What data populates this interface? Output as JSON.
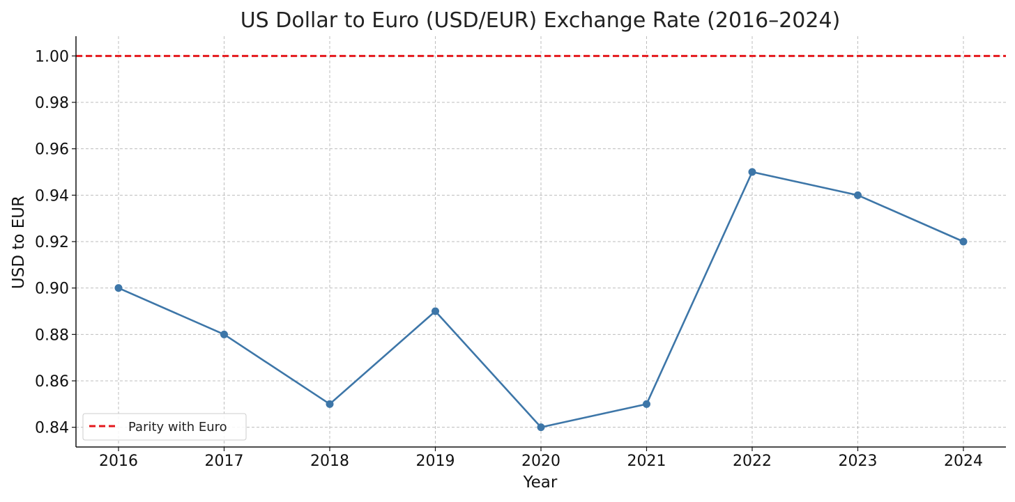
{
  "chart_data": {
    "type": "line",
    "title": "US Dollar to Euro (USD/EUR) Exchange Rate (2016–2024)",
    "xlabel": "Year",
    "ylabel": "USD to EUR",
    "categories": [
      "2016",
      "2017",
      "2018",
      "2019",
      "2020",
      "2021",
      "2022",
      "2023",
      "2024"
    ],
    "series": [
      {
        "values": [
          0.9,
          0.88,
          0.85,
          0.89,
          0.84,
          0.85,
          0.95,
          0.94,
          0.92
        ],
        "color": "#3d76a8",
        "marker": "circle"
      }
    ],
    "reference_line": {
      "name": "Parity with Euro",
      "value": 1.0,
      "color": "#e4181c",
      "style": "dashed"
    },
    "yticks": [
      "0.84",
      "0.86",
      "0.88",
      "0.90",
      "0.92",
      "0.94",
      "0.96",
      "0.98",
      "1.00"
    ],
    "ylim": [
      0.8315,
      1.0085
    ],
    "grid": true,
    "legend_position": "lower-left"
  }
}
